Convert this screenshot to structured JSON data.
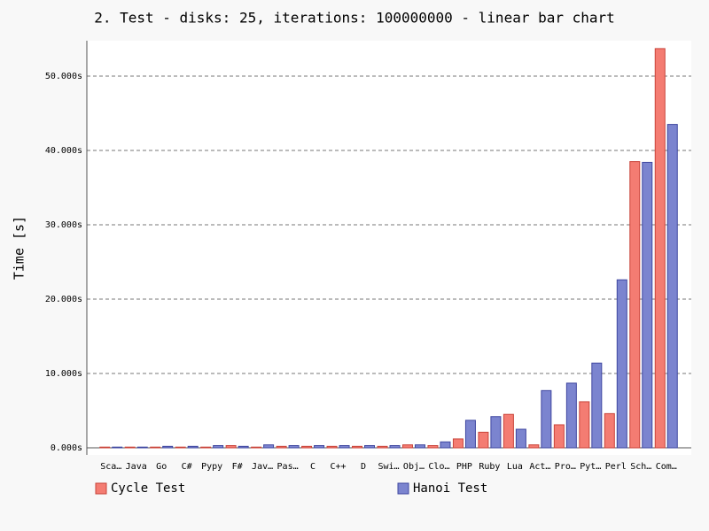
{
  "chart_data": {
    "type": "bar",
    "title": "2. Test - disks: 25, iterations: 100000000 - linear bar chart",
    "y_label": "Time [s]",
    "categories": [
      "Sca…",
      "Java",
      "Go",
      "C#",
      "Pypy",
      "F#",
      "Jav…",
      "Pas…",
      "C",
      "C++",
      "D",
      "Swi…",
      "Obj…",
      "Clo…",
      "PHP",
      "Ruby",
      "Lua",
      "Act…",
      "Pro…",
      "Pyt…",
      "Perl",
      "Sch…",
      "Com…"
    ],
    "series": [
      {
        "name": "Cycle Test",
        "color": "#f47c72",
        "values": [
          0.1,
          0.1,
          0.1,
          0.1,
          0.1,
          0.3,
          0.1,
          0.2,
          0.2,
          0.2,
          0.2,
          0.2,
          0.4,
          0.3,
          1.2,
          2.1,
          4.5,
          0.4,
          3.1,
          6.2,
          4.6,
          38.5,
          53.7
        ]
      },
      {
        "name": "Hanoi Test",
        "color": "#7b84cf",
        "values": [
          0.1,
          0.1,
          0.2,
          0.2,
          0.3,
          0.2,
          0.4,
          0.3,
          0.3,
          0.3,
          0.3,
          0.3,
          0.4,
          0.8,
          3.7,
          4.2,
          2.5,
          7.7,
          8.7,
          11.4,
          22.6,
          38.4,
          43.5
        ]
      }
    ],
    "ylim": [
      -0.95,
      54.76
    ],
    "yticks": [
      {
        "value": 0,
        "label": "0.000s"
      },
      {
        "value": 10,
        "label": "10.000s"
      },
      {
        "value": 20,
        "label": "20.000s"
      },
      {
        "value": 30,
        "label": "30.000s"
      },
      {
        "value": 40,
        "label": "40.000s"
      },
      {
        "value": 50,
        "label": "50.000s"
      }
    ],
    "grid": true
  }
}
